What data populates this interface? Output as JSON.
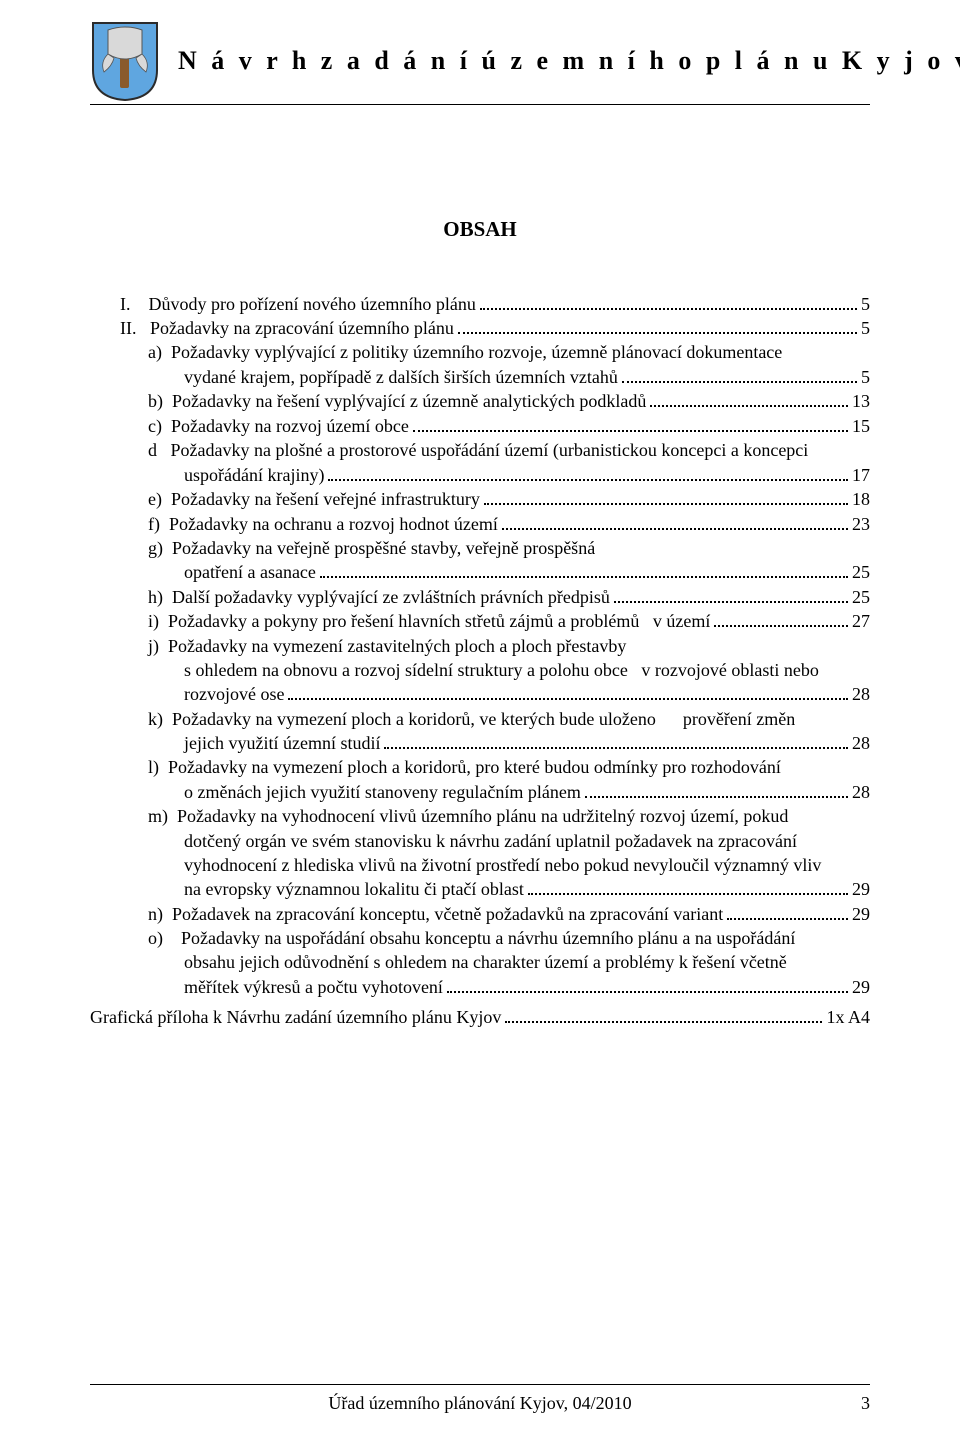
{
  "header": {
    "title": "N á v r h   z a d á n í   ú z e m n í h o   p l á n u   K y j o v"
  },
  "crest": {
    "shield_fill": "#5fa6e0",
    "shield_stroke": "#2b2b2b",
    "blade_fill": "#d9d9d9",
    "handle_fill": "#8a5a2b",
    "ribbon_fill": "#d9d9d9"
  },
  "section_heading": "OBSAH",
  "toc": {
    "lines": [
      {
        "lead": "I.    Důvody pro pořízení nového územního plánu",
        "indent": 0,
        "page": "5"
      },
      {
        "lead": "II.   Požadavky na zpracování územního plánu",
        "indent": 0,
        "page": "5"
      },
      {
        "lead": "a)  Požadavky vyplývající z politiky územního rozvoje, územně plánovací dokumentace",
        "indent": 1,
        "page": null
      },
      {
        "lead": "vydané krajem, popřípadě z dalších širších územních vztahů",
        "indent": 2,
        "page": "5"
      },
      {
        "lead": "b)  Požadavky na řešení vyplývající z územně analytických podkladů",
        "indent": 1,
        "page": "13"
      },
      {
        "lead": "c)  Požadavky na rozvoj území obce",
        "indent": 1,
        "page": "15"
      },
      {
        "lead": "d   Požadavky na plošné a prostorové uspořádání území (urbanistickou koncepci a koncepci",
        "indent": 1,
        "page": null
      },
      {
        "lead": "uspořádání krajiny)",
        "indent": 2,
        "page": "17"
      },
      {
        "lead": "e)  Požadavky na řešení veřejné infrastruktury",
        "indent": 1,
        "page": "18"
      },
      {
        "lead": "f)  Požadavky na ochranu a rozvoj hodnot území",
        "indent": 1,
        "page": "23"
      },
      {
        "lead": "g)  Požadavky na veřejně prospěšné stavby, veřejně prospěšná",
        "indent": 1,
        "page": null
      },
      {
        "lead": "opatření a asanace",
        "indent": 2,
        "page": "25"
      },
      {
        "lead": "h)  Další požadavky vyplývající ze zvláštních právních předpisů",
        "indent": 1,
        "page": "25"
      },
      {
        "lead": "i)  Požadavky a pokyny pro řešení hlavních střetů zájmů a problémů   v území",
        "indent": 1,
        "page": "27"
      },
      {
        "lead": "j)  Požadavky na vymezení zastavitelných ploch a ploch přestavby",
        "indent": 1,
        "page": null
      },
      {
        "lead": "s ohledem na obnovu a rozvoj sídelní struktury a polohu obce   v rozvojové oblasti nebo",
        "indent": 2,
        "page": null
      },
      {
        "lead": "rozvojové ose",
        "indent": 2,
        "page": "28"
      },
      {
        "lead": "k)  Požadavky na vymezení ploch a koridorů, ve kterých bude uloženo      prověření změn",
        "indent": 1,
        "page": null
      },
      {
        "lead": "jejich využití územní studií",
        "indent": 2,
        "page": "28"
      },
      {
        "lead": "l)  Požadavky na vymezení ploch a koridorů, pro které budou odmínky pro rozhodování",
        "indent": 1,
        "page": null
      },
      {
        "lead": "o změnách jejich využití stanoveny regulačním plánem",
        "indent": 2,
        "page": "28"
      },
      {
        "lead": "m)  Požadavky na vyhodnocení vlivů územního plánu na udržitelný rozvoj území, pokud",
        "indent": 1,
        "page": null
      },
      {
        "lead": "dotčený orgán ve svém stanovisku k návrhu zadání uplatnil požadavek na zpracování",
        "indent": 2,
        "page": null
      },
      {
        "lead": "vyhodnocení z hlediska vlivů na životní prostředí nebo pokud nevyloučil významný vliv",
        "indent": 2,
        "page": null
      },
      {
        "lead": "na evropsky významnou lokalitu či ptačí oblast",
        "indent": 2,
        "page": "29"
      },
      {
        "lead": "n)  Požadavek na zpracování konceptu, včetně požadavků na zpracování variant",
        "indent": 1,
        "page": "29"
      },
      {
        "lead": "o)    Požadavky na uspořádání obsahu konceptu a návrhu územního plánu a na uspořádání",
        "indent": 1,
        "page": null
      },
      {
        "lead": "obsahu jejich odůvodnění s ohledem na charakter území a problémy k řešení včetně",
        "indent": 2,
        "page": null
      },
      {
        "lead": "měřítek výkresů a počtu vyhotovení",
        "indent": 2,
        "page": "29"
      }
    ]
  },
  "extra_line": {
    "text": "Grafická příloha k Návrhu zadání územního plánu Kyjov",
    "page": "1x A4"
  },
  "footer": {
    "center": "Úřad územního plánování Kyjov,  04/2010",
    "page_number": "3"
  }
}
